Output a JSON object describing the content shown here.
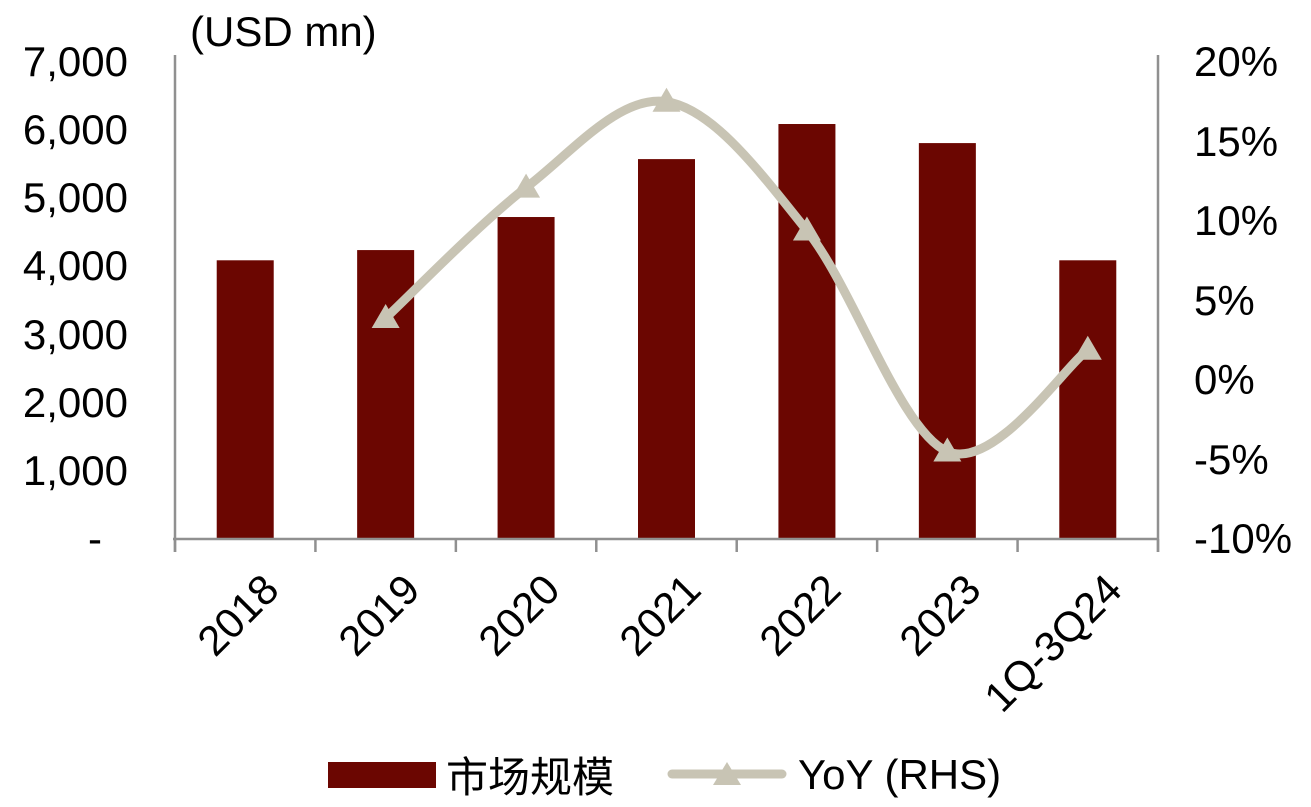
{
  "chart_data": {
    "type": "combo",
    "title": "(USD mn)",
    "categories": [
      "2018",
      "2019",
      "2020",
      "2021",
      "2022",
      "2023",
      "1Q-3Q24"
    ],
    "series": [
      {
        "name": "市场规模",
        "type": "bar",
        "axis": "left",
        "color": "#6B0601",
        "values": [
          4090,
          4240,
          4725,
          5575,
          6090,
          5810,
          4090
        ]
      },
      {
        "name": "YoY (RHS)",
        "type": "line",
        "axis": "right",
        "color": "#C8C4B4",
        "values": [
          null,
          3.9,
          12.1,
          17.5,
          9.4,
          -4.5,
          1.9
        ]
      }
    ],
    "left_axis": {
      "unit": "(USD mn)",
      "min": 0,
      "max": 7000,
      "ticks": [
        "7,000",
        "6,000",
        "5,000",
        "4,000",
        "3,000",
        "2,000",
        "1,000",
        "-"
      ]
    },
    "right_axis": {
      "min": -10,
      "max": 20,
      "ticks": [
        "20%",
        "15%",
        "10%",
        "5%",
        "0%",
        "-5%",
        "-10%"
      ]
    },
    "legend_position": "bottom",
    "grid": false,
    "axis_color": "#909090",
    "text_color": "#000000"
  }
}
